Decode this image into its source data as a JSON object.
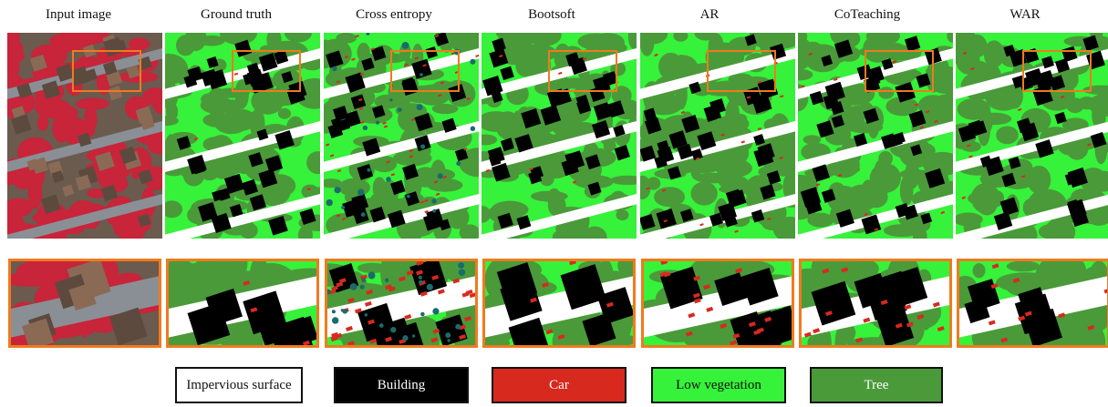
{
  "columns": [
    {
      "title": "Input image",
      "kind": "input"
    },
    {
      "title": "Ground truth",
      "kind": "gt"
    },
    {
      "title": "Cross entropy",
      "kind": "ce"
    },
    {
      "title": "Bootsoft",
      "kind": "boot"
    },
    {
      "title": "AR",
      "kind": "ar"
    },
    {
      "title": "CoTeaching",
      "kind": "cot"
    },
    {
      "title": "WAR",
      "kind": "war"
    }
  ],
  "legend": [
    {
      "label": "Impervious surface",
      "color": "#ffffff",
      "text_color": "#111111"
    },
    {
      "label": "Building",
      "color": "#000000",
      "text_color": "#ffffff"
    },
    {
      "label": "Car",
      "color": "#d8291f",
      "text_color": "#ffffff"
    },
    {
      "label": "Low vegetation",
      "color": "#36f23a",
      "text_color": "#111111"
    },
    {
      "label": "Tree",
      "color": "#4a9a3a",
      "text_color": "#ffffff"
    }
  ],
  "colors": {
    "highlight_box": "#f07a1e",
    "impervious": "#ffffff",
    "building": "#000000",
    "car": "#d8291f",
    "low_vegetation": "#36f23a",
    "tree": "#4a9a3a",
    "input_red": "#c8243a",
    "input_road": "#8a8f96"
  }
}
